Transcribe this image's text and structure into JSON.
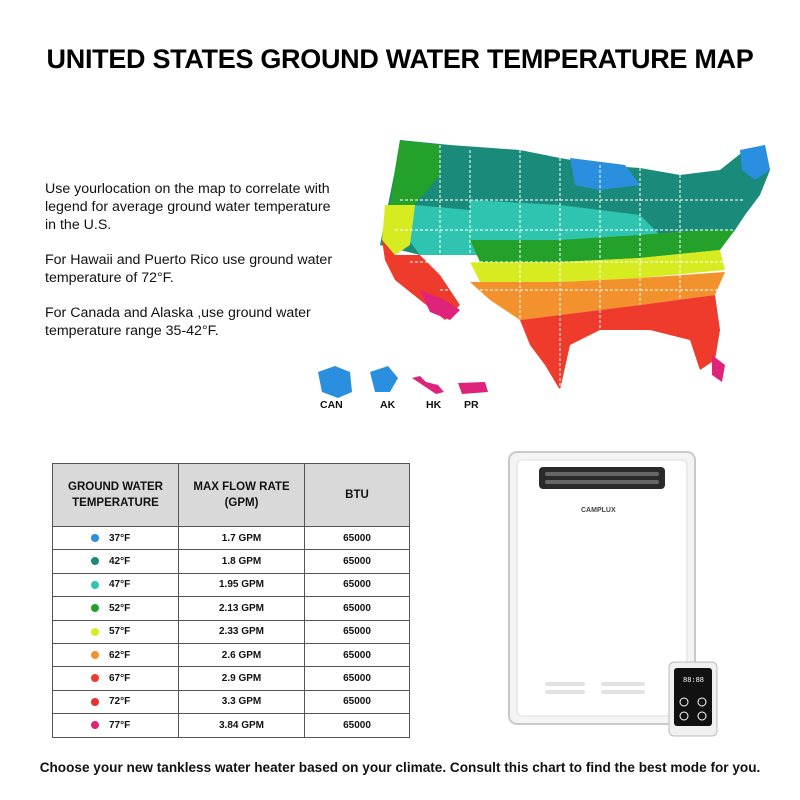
{
  "title": "UNITED STATES GROUND WATER TEMPERATURE MAP",
  "notes": [
    "Use yourlocation on the map to correlate with legend for average ground water temperature in the U.S.",
    "For Hawaii and Puerto Rico use ground water temperature of 72°F.",
    "For Canada and Alaska ,use ground water temperature range 35-42°F."
  ],
  "map_labels": {
    "can": "CAN",
    "ak": "AK",
    "hk": "HK",
    "pr": "PR"
  },
  "colors": {
    "t37": "#2b8fe0",
    "t42": "#1a8a7a",
    "t47": "#2ec4b0",
    "t52": "#23a12b",
    "t57": "#d6ec20",
    "t62": "#f3922c",
    "t67": "#ee3b2b",
    "t72": "#e2332e",
    "t77": "#e0237a"
  },
  "table": {
    "headers": [
      "GROUND WATER TEMPERATURE",
      "MAX FLOW RATE (GPM)",
      "BTU"
    ],
    "rows": [
      {
        "temp": "37°F",
        "flow": "1.7 GPM",
        "btu": "65000",
        "color": "#2b8fe0"
      },
      {
        "temp": "42°F",
        "flow": "1.8 GPM",
        "btu": "65000",
        "color": "#1a8a7a"
      },
      {
        "temp": "47°F",
        "flow": "1.95 GPM",
        "btu": "65000",
        "color": "#2ec4b0"
      },
      {
        "temp": "52°F",
        "flow": "2.13 GPM",
        "btu": "65000",
        "color": "#23a12b"
      },
      {
        "temp": "57°F",
        "flow": "2.33 GPM",
        "btu": "65000",
        "color": "#d6ec20"
      },
      {
        "temp": "62°F",
        "flow": "2.6 GPM",
        "btu": "65000",
        "color": "#f3922c"
      },
      {
        "temp": "67°F",
        "flow": "2.9 GPM",
        "btu": "65000",
        "color": "#ee3b2b"
      },
      {
        "temp": "72°F",
        "flow": "3.3 GPM",
        "btu": "65000",
        "color": "#e2332e"
      },
      {
        "temp": "77°F",
        "flow": "3.84 GPM",
        "btu": "65000",
        "color": "#e0237a"
      }
    ]
  },
  "heater": {
    "brand": "CAMPLUX",
    "display": "88:88"
  },
  "footer": "Choose your new tankless water heater based on your climate. Consult this chart to find the best mode for you."
}
